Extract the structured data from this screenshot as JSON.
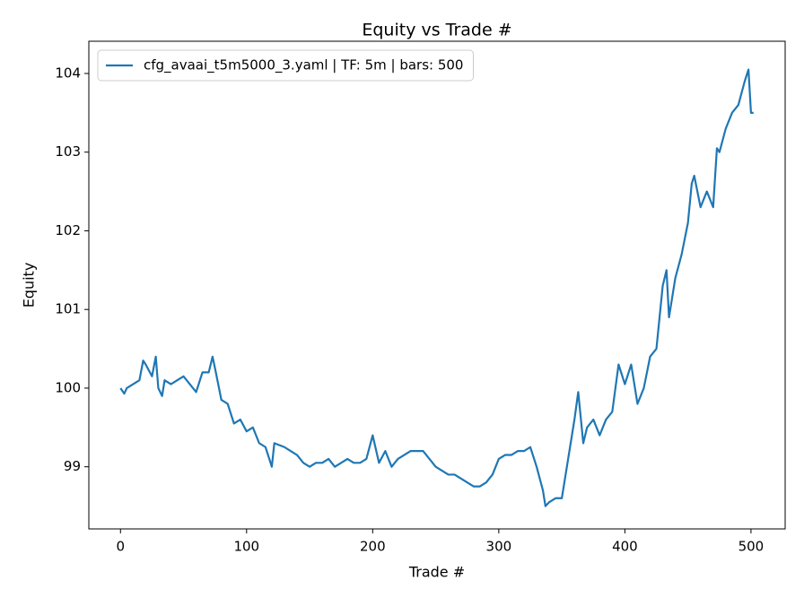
{
  "chart_data": {
    "type": "line",
    "title": "Equity vs Trade #",
    "x_label": "Trade #",
    "y_label": "Equity",
    "x": [
      0,
      3,
      5,
      10,
      15,
      18,
      20,
      25,
      28,
      30,
      33,
      35,
      40,
      45,
      50,
      55,
      60,
      65,
      70,
      73,
      75,
      80,
      85,
      90,
      95,
      100,
      105,
      110,
      115,
      120,
      122,
      130,
      135,
      140,
      145,
      150,
      155,
      160,
      165,
      170,
      175,
      180,
      185,
      190,
      195,
      200,
      205,
      210,
      215,
      220,
      225,
      230,
      235,
      240,
      245,
      250,
      255,
      260,
      265,
      270,
      275,
      280,
      285,
      290,
      295,
      300,
      305,
      310,
      315,
      320,
      325,
      330,
      335,
      337,
      340,
      345,
      350,
      355,
      360,
      363,
      367,
      370,
      375,
      380,
      385,
      390,
      395,
      400,
      405,
      410,
      415,
      420,
      425,
      430,
      433,
      435,
      440,
      445,
      450,
      453,
      455,
      460,
      465,
      470,
      473,
      475,
      480,
      485,
      490,
      495,
      498,
      500,
      502
    ],
    "series": [
      {
        "name": "cfg_avaai_t5m5000_3.yaml | TF: 5m | bars: 500",
        "color": "#1f77b4",
        "values": [
          100.0,
          99.93,
          100.0,
          100.05,
          100.1,
          100.35,
          100.3,
          100.15,
          100.4,
          100.0,
          99.9,
          100.1,
          100.05,
          100.1,
          100.15,
          100.05,
          99.95,
          100.2,
          100.2,
          100.4,
          100.25,
          99.85,
          99.8,
          99.55,
          99.6,
          99.45,
          99.5,
          99.3,
          99.25,
          99.0,
          99.3,
          99.25,
          99.2,
          99.15,
          99.05,
          99.0,
          99.05,
          99.05,
          99.1,
          99.0,
          99.05,
          99.1,
          99.05,
          99.05,
          99.1,
          99.4,
          99.05,
          99.2,
          99.0,
          99.1,
          99.15,
          99.2,
          99.2,
          99.2,
          99.1,
          99.0,
          98.95,
          98.9,
          98.9,
          98.85,
          98.8,
          98.75,
          98.75,
          98.8,
          98.9,
          99.1,
          99.15,
          99.15,
          99.2,
          99.2,
          99.25,
          99.0,
          98.7,
          98.5,
          98.55,
          98.6,
          98.6,
          99.1,
          99.6,
          99.95,
          99.3,
          99.5,
          99.6,
          99.4,
          99.6,
          99.7,
          100.3,
          100.05,
          100.3,
          99.8,
          100.0,
          100.4,
          100.5,
          101.3,
          101.5,
          100.9,
          101.4,
          101.7,
          102.1,
          102.6,
          102.7,
          102.3,
          102.5,
          102.3,
          103.05,
          103.0,
          103.3,
          103.5,
          103.6,
          103.9,
          104.05,
          103.5,
          103.5
        ]
      }
    ],
    "xlim": [
      -25.1,
      527.1
    ],
    "ylim": [
      98.21,
      104.41
    ],
    "xticks": [
      0,
      100,
      200,
      300,
      400,
      500
    ],
    "yticks": [
      99,
      100,
      101,
      102,
      103,
      104
    ],
    "legend": "upper left"
  }
}
